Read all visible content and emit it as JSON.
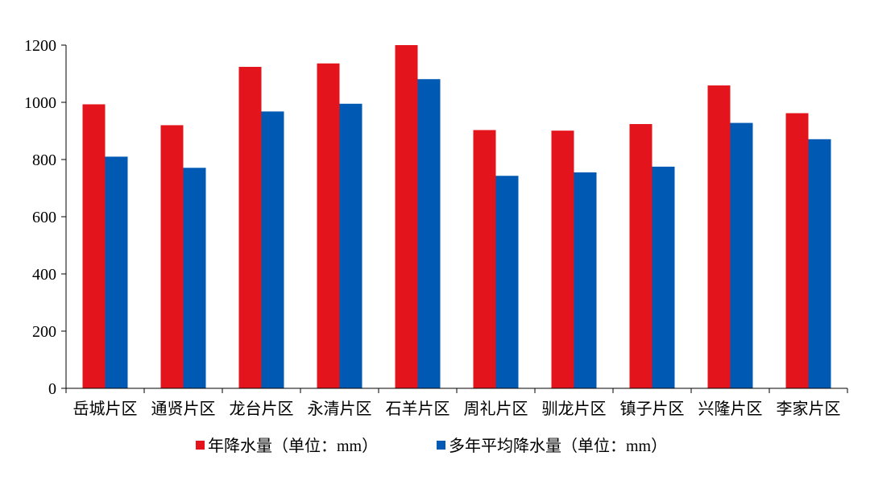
{
  "chart_data": {
    "type": "bar",
    "categories": [
      "岳城片区",
      "通贤片区",
      "龙台片区",
      "永清片区",
      "石羊片区",
      "周礼片区",
      "驯龙片区",
      "镇子片区",
      "兴隆片区",
      "李家片区"
    ],
    "series": [
      {
        "name": "年降水量（单位：mm）",
        "color": "#e3141c",
        "values": [
          993,
          920,
          1124,
          1136,
          1200,
          903,
          901,
          924,
          1059,
          962
        ]
      },
      {
        "name": "多年平均降水量（单位：mm）",
        "color": "#0059b3",
        "values": [
          810,
          771,
          968,
          995,
          1081,
          743,
          755,
          775,
          928,
          871
        ]
      }
    ],
    "ylim": [
      0,
      1200
    ],
    "yticks": [
      0,
      200,
      400,
      600,
      800,
      1000,
      1200
    ],
    "xlabel": "",
    "ylabel": "",
    "title": "",
    "grid": false,
    "legend_position": "bottom"
  }
}
